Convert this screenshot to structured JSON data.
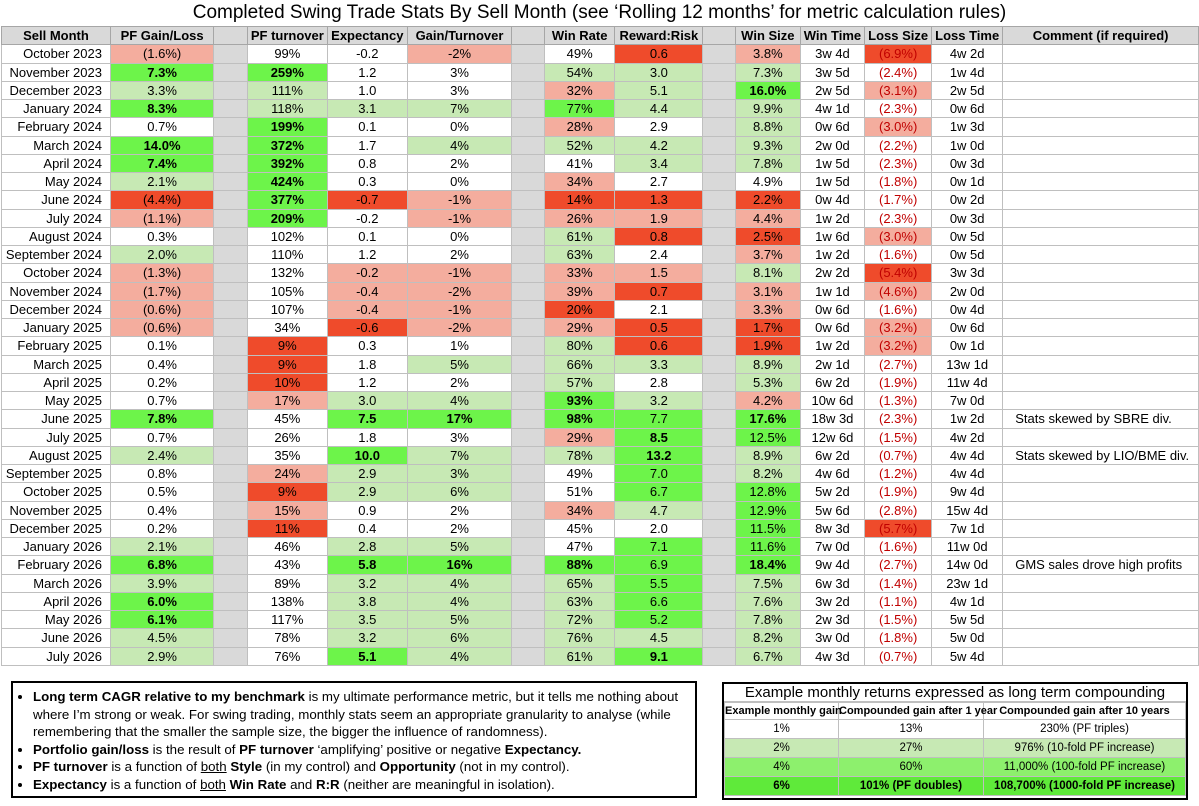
{
  "title": "Completed Swing Trade Stats By Sell Month (see ‘Rolling 12 months’ for metric calculation rules)",
  "headers": [
    "Sell Month",
    "PF Gain/Loss",
    "",
    "PF turnover",
    "Expectancy",
    "Gain/Turnover",
    "",
    "Win Rate",
    "Reward:Risk",
    "",
    "Win Size",
    "Win Time",
    "Loss Size",
    "Loss Time",
    "Comment (if required)"
  ],
  "colors": {
    "strong_green": "#6df44a",
    "light_green": "#c7e9b4",
    "strong_red": "#ef4b2b",
    "light_red": "#f4ad9e",
    "gap_grey": "#d9d9d9"
  },
  "rows": [
    {
      "month": "October 2023",
      "gain": "(1.6%)",
      "turnover": "99%",
      "exp": "-0.2",
      "gto": "-2%",
      "win": "49%",
      "rr": "0.6",
      "wsize": "3.8%",
      "wtime": "3w 4d",
      "lsize": "(6.9%)",
      "ltime": "4w 2d",
      "comment": ""
    },
    {
      "month": "November 2023",
      "gain": "7.3%",
      "turnover": "259%",
      "exp": "1.2",
      "gto": "3%",
      "win": "54%",
      "rr": "3.0",
      "wsize": "7.3%",
      "wtime": "3w 5d",
      "lsize": "(2.4%)",
      "ltime": "1w 4d",
      "comment": ""
    },
    {
      "month": "December 2023",
      "gain": "3.3%",
      "turnover": "111%",
      "exp": "1.0",
      "gto": "3%",
      "win": "32%",
      "rr": "5.1",
      "wsize": "16.0%",
      "wtime": "2w 5d",
      "lsize": "(3.1%)",
      "ltime": "2w 5d",
      "comment": ""
    },
    {
      "month": "January 2024",
      "gain": "8.3%",
      "turnover": "118%",
      "exp": "3.1",
      "gto": "7%",
      "win": "77%",
      "rr": "4.4",
      "wsize": "9.9%",
      "wtime": "4w 1d",
      "lsize": "(2.3%)",
      "ltime": "0w 6d",
      "comment": ""
    },
    {
      "month": "February 2024",
      "gain": "0.7%",
      "turnover": "199%",
      "exp": "0.1",
      "gto": "0%",
      "win": "28%",
      "rr": "2.9",
      "wsize": "8.8%",
      "wtime": "0w 6d",
      "lsize": "(3.0%)",
      "ltime": "1w 3d",
      "comment": ""
    },
    {
      "month": "March 2024",
      "gain": "14.0%",
      "turnover": "372%",
      "exp": "1.7",
      "gto": "4%",
      "win": "52%",
      "rr": "4.2",
      "wsize": "9.3%",
      "wtime": "2w 0d",
      "lsize": "(2.2%)",
      "ltime": "1w 0d",
      "comment": ""
    },
    {
      "month": "April 2024",
      "gain": "7.4%",
      "turnover": "392%",
      "exp": "0.8",
      "gto": "2%",
      "win": "41%",
      "rr": "3.4",
      "wsize": "7.8%",
      "wtime": "1w 5d",
      "lsize": "(2.3%)",
      "ltime": "0w 3d",
      "comment": ""
    },
    {
      "month": "May 2024",
      "gain": "2.1%",
      "turnover": "424%",
      "exp": "0.3",
      "gto": "0%",
      "win": "34%",
      "rr": "2.7",
      "wsize": "4.9%",
      "wtime": "1w 5d",
      "lsize": "(1.8%)",
      "ltime": "0w 1d",
      "comment": ""
    },
    {
      "month": "June 2024",
      "gain": "(4.4%)",
      "turnover": "377%",
      "exp": "-0.7",
      "gto": "-1%",
      "win": "14%",
      "rr": "1.3",
      "wsize": "2.2%",
      "wtime": "0w 4d",
      "lsize": "(1.7%)",
      "ltime": "0w 2d",
      "comment": ""
    },
    {
      "month": "July 2024",
      "gain": "(1.1%)",
      "turnover": "209%",
      "exp": "-0.2",
      "gto": "-1%",
      "win": "26%",
      "rr": "1.9",
      "wsize": "4.4%",
      "wtime": "1w 2d",
      "lsize": "(2.3%)",
      "ltime": "0w 3d",
      "comment": ""
    },
    {
      "month": "August 2024",
      "gain": "0.3%",
      "turnover": "102%",
      "exp": "0.1",
      "gto": "0%",
      "win": "61%",
      "rr": "0.8",
      "wsize": "2.5%",
      "wtime": "1w 6d",
      "lsize": "(3.0%)",
      "ltime": "0w 5d",
      "comment": ""
    },
    {
      "month": "September 2024",
      "gain": "2.0%",
      "turnover": "110%",
      "exp": "1.2",
      "gto": "2%",
      "win": "63%",
      "rr": "2.4",
      "wsize": "3.7%",
      "wtime": "1w 2d",
      "lsize": "(1.6%)",
      "ltime": "0w 5d",
      "comment": ""
    },
    {
      "month": "October 2024",
      "gain": "(1.3%)",
      "turnover": "132%",
      "exp": "-0.2",
      "gto": "-1%",
      "win": "33%",
      "rr": "1.5",
      "wsize": "8.1%",
      "wtime": "2w 2d",
      "lsize": "(5.4%)",
      "ltime": "3w 3d",
      "comment": ""
    },
    {
      "month": "November 2024",
      "gain": "(1.7%)",
      "turnover": "105%",
      "exp": "-0.4",
      "gto": "-2%",
      "win": "39%",
      "rr": "0.7",
      "wsize": "3.1%",
      "wtime": "1w 1d",
      "lsize": "(4.6%)",
      "ltime": "2w 0d",
      "comment": ""
    },
    {
      "month": "December 2024",
      "gain": "(0.6%)",
      "turnover": "107%",
      "exp": "-0.4",
      "gto": "-1%",
      "win": "20%",
      "rr": "2.1",
      "wsize": "3.3%",
      "wtime": "0w 6d",
      "lsize": "(1.6%)",
      "ltime": "0w 4d",
      "comment": ""
    },
    {
      "month": "January 2025",
      "gain": "(0.6%)",
      "turnover": "34%",
      "exp": "-0.6",
      "gto": "-2%",
      "win": "29%",
      "rr": "0.5",
      "wsize": "1.7%",
      "wtime": "0w 6d",
      "lsize": "(3.2%)",
      "ltime": "0w 6d",
      "comment": ""
    },
    {
      "month": "February 2025",
      "gain": "0.1%",
      "turnover": "9%",
      "exp": "0.3",
      "gto": "1%",
      "win": "80%",
      "rr": "0.6",
      "wsize": "1.9%",
      "wtime": "1w 2d",
      "lsize": "(3.2%)",
      "ltime": "0w 1d",
      "comment": ""
    },
    {
      "month": "March 2025",
      "gain": "0.4%",
      "turnover": "9%",
      "exp": "1.8",
      "gto": "5%",
      "win": "66%",
      "rr": "3.3",
      "wsize": "8.9%",
      "wtime": "2w 1d",
      "lsize": "(2.7%)",
      "ltime": "13w 1d",
      "comment": ""
    },
    {
      "month": "April 2025",
      "gain": "0.2%",
      "turnover": "10%",
      "exp": "1.2",
      "gto": "2%",
      "win": "57%",
      "rr": "2.8",
      "wsize": "5.3%",
      "wtime": "6w 2d",
      "lsize": "(1.9%)",
      "ltime": "11w 4d",
      "comment": ""
    },
    {
      "month": "May 2025",
      "gain": "0.7%",
      "turnover": "17%",
      "exp": "3.0",
      "gto": "4%",
      "win": "93%",
      "rr": "3.2",
      "wsize": "4.2%",
      "wtime": "10w 6d",
      "lsize": "(1.3%)",
      "ltime": "7w 0d",
      "comment": ""
    },
    {
      "month": "June 2025",
      "gain": "7.8%",
      "turnover": "45%",
      "exp": "7.5",
      "gto": "17%",
      "win": "98%",
      "rr": "7.7",
      "wsize": "17.6%",
      "wtime": "18w 3d",
      "lsize": "(2.3%)",
      "ltime": "1w 2d",
      "comment": "Stats skewed by SBRE div."
    },
    {
      "month": "July 2025",
      "gain": "0.7%",
      "turnover": "26%",
      "exp": "1.8",
      "gto": "3%",
      "win": "29%",
      "rr": "8.5",
      "wsize": "12.5%",
      "wtime": "12w 6d",
      "lsize": "(1.5%)",
      "ltime": "4w 2d",
      "comment": ""
    },
    {
      "month": "August 2025",
      "gain": "2.4%",
      "turnover": "35%",
      "exp": "10.0",
      "gto": "7%",
      "win": "78%",
      "rr": "13.2",
      "wsize": "8.9%",
      "wtime": "6w 2d",
      "lsize": "(0.7%)",
      "ltime": "4w 4d",
      "comment": "Stats skewed by LIO/BME div."
    },
    {
      "month": "September 2025",
      "gain": "0.8%",
      "turnover": "24%",
      "exp": "2.9",
      "gto": "3%",
      "win": "49%",
      "rr": "7.0",
      "wsize": "8.2%",
      "wtime": "4w 6d",
      "lsize": "(1.2%)",
      "ltime": "4w 4d",
      "comment": ""
    },
    {
      "month": "October 2025",
      "gain": "0.5%",
      "turnover": "9%",
      "exp": "2.9",
      "gto": "6%",
      "win": "51%",
      "rr": "6.7",
      "wsize": "12.8%",
      "wtime": "5w 2d",
      "lsize": "(1.9%)",
      "ltime": "9w 4d",
      "comment": ""
    },
    {
      "month": "November 2025",
      "gain": "0.4%",
      "turnover": "15%",
      "exp": "0.9",
      "gto": "2%",
      "win": "34%",
      "rr": "4.7",
      "wsize": "12.9%",
      "wtime": "5w 6d",
      "lsize": "(2.8%)",
      "ltime": "15w 4d",
      "comment": ""
    },
    {
      "month": "December 2025",
      "gain": "0.2%",
      "turnover": "11%",
      "exp": "0.4",
      "gto": "2%",
      "win": "45%",
      "rr": "2.0",
      "wsize": "11.5%",
      "wtime": "8w 3d",
      "lsize": "(5.7%)",
      "ltime": "7w 1d",
      "comment": ""
    },
    {
      "month": "January 2026",
      "gain": "2.1%",
      "turnover": "46%",
      "exp": "2.8",
      "gto": "5%",
      "win": "47%",
      "rr": "7.1",
      "wsize": "11.6%",
      "wtime": "7w 0d",
      "lsize": "(1.6%)",
      "ltime": "11w 0d",
      "comment": ""
    },
    {
      "month": "February 2026",
      "gain": "6.8%",
      "turnover": "43%",
      "exp": "5.8",
      "gto": "16%",
      "win": "88%",
      "rr": "6.9",
      "wsize": "18.4%",
      "wtime": "9w 4d",
      "lsize": "(2.7%)",
      "ltime": "14w 0d",
      "comment": "GMS sales drove high profits"
    },
    {
      "month": "March 2026",
      "gain": "3.9%",
      "turnover": "89%",
      "exp": "3.2",
      "gto": "4%",
      "win": "65%",
      "rr": "5.5",
      "wsize": "7.5%",
      "wtime": "6w 3d",
      "lsize": "(1.4%)",
      "ltime": "23w 1d",
      "comment": ""
    },
    {
      "month": "April 2026",
      "gain": "6.0%",
      "turnover": "138%",
      "exp": "3.8",
      "gto": "4%",
      "win": "63%",
      "rr": "6.6",
      "wsize": "7.6%",
      "wtime": "3w 2d",
      "lsize": "(1.1%)",
      "ltime": "4w 1d",
      "comment": ""
    },
    {
      "month": "May 2026",
      "gain": "6.1%",
      "turnover": "117%",
      "exp": "3.5",
      "gto": "5%",
      "win": "72%",
      "rr": "5.2",
      "wsize": "7.8%",
      "wtime": "2w 3d",
      "lsize": "(1.5%)",
      "ltime": "5w 5d",
      "comment": ""
    },
    {
      "month": "June 2026",
      "gain": "4.5%",
      "turnover": "78%",
      "exp": "3.2",
      "gto": "6%",
      "win": "76%",
      "rr": "4.5",
      "wsize": "8.2%",
      "wtime": "3w 0d",
      "lsize": "(1.8%)",
      "ltime": "5w 0d",
      "comment": ""
    },
    {
      "month": "July 2026",
      "gain": "2.9%",
      "turnover": "76%",
      "exp": "5.1",
      "gto": "4%",
      "win": "61%",
      "rr": "9.1",
      "wsize": "6.7%",
      "wtime": "4w 3d",
      "lsize": "(0.7%)",
      "ltime": "5w 4d",
      "comment": ""
    }
  ],
  "notes": [
    [
      {
        "t": "Long term CAGR relative to my benchmark",
        "b": true
      },
      {
        "t": " is my ultimate performance metric, but it tells me nothing about where I’m strong or weak. For swing trading, monthly stats seem an appropriate granularity to analyse (while remembering that the smaller the sample size, the bigger the influence of randomness)."
      }
    ],
    [
      {
        "t": "Portfolio gain/loss",
        "b": true
      },
      {
        "t": " is the result of "
      },
      {
        "t": "PF turnover",
        "b": true
      },
      {
        "t": " ‘amplifying’ positive or negative "
      },
      {
        "t": "Expectancy.",
        "b": true
      }
    ],
    [
      {
        "t": "PF turnover",
        "b": true
      },
      {
        "t": " is a function of "
      },
      {
        "t": "both",
        "u": true
      },
      {
        "t": " "
      },
      {
        "t": "Style",
        "b": true
      },
      {
        "t": " (in my control) and "
      },
      {
        "t": "Opportunity",
        "b": true
      },
      {
        "t": " (not in my control)."
      }
    ],
    [
      {
        "t": "Expectancy",
        "b": true
      },
      {
        "t": " is a function of "
      },
      {
        "t": "both",
        "u": true
      },
      {
        "t": " "
      },
      {
        "t": "Win Rate",
        "b": true
      },
      {
        "t": " and "
      },
      {
        "t": "R:R",
        "b": true
      },
      {
        "t": " (neither are meaningful in isolation)."
      }
    ]
  ],
  "example": {
    "title": "Example monthly returns expressed as long term compounding",
    "headers": [
      "Example monthly gain",
      "Compounded gain after 1 year",
      "Compounded gain after 10 years"
    ],
    "rows": [
      [
        "1%",
        "13%",
        "230% (PF triples)"
      ],
      [
        "2%",
        "27%",
        "976% (10-fold PF increase)"
      ],
      [
        "4%",
        "60%",
        "11,000% (100-fold PF increase)"
      ],
      [
        "6%",
        "101% (PF doubles)",
        "108,700% (1000-fold PF increase)"
      ]
    ]
  }
}
